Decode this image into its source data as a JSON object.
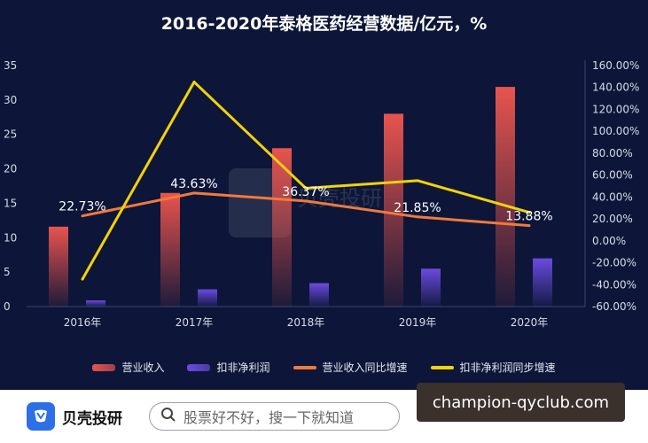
{
  "chart_data": {
    "type": "bar",
    "title": "2016-2020年泰格医药经营数据/亿元，%",
    "categories": [
      "2016年",
      "2017年",
      "2018年",
      "2019年",
      "2020年"
    ],
    "series": [
      {
        "name": "营业收入",
        "type": "bar",
        "axis": "left",
        "values": [
          11.6,
          16.5,
          23.0,
          28.0,
          31.9
        ],
        "color": "#e8544e"
      },
      {
        "name": "扣非净利润",
        "type": "bar",
        "axis": "left",
        "values": [
          0.9,
          2.5,
          3.4,
          5.5,
          7.0
        ],
        "color": "#6a4be0"
      },
      {
        "name": "营业收入同比增速",
        "type": "line",
        "axis": "right",
        "values": [
          22.73,
          43.63,
          36.37,
          21.85,
          13.88
        ],
        "data_labels": [
          "22.73%",
          "43.63%",
          "36.37%",
          "21.85%",
          "13.88%"
        ],
        "color": "#f07a3c"
      },
      {
        "name": "扣非净利润同步增速",
        "type": "line",
        "axis": "right",
        "values": [
          -35,
          145,
          48,
          55,
          26
        ],
        "color": "#f2d20a"
      }
    ],
    "y_left": {
      "range": [
        0,
        35
      ],
      "ticks": [
        "0",
        "5",
        "10",
        "15",
        "20",
        "25",
        "30",
        "35"
      ]
    },
    "y_right": {
      "range": [
        -60,
        160
      ],
      "ticks": [
        "-60.00%",
        "-40.00%",
        "-20.00%",
        "0.00%",
        "20.00%",
        "40.00%",
        "60.00%",
        "80.00%",
        "100.00%",
        "120.00%",
        "140.00%",
        "160.00%"
      ]
    },
    "grid": false,
    "legend_position": "bottom"
  },
  "watermark": {
    "text": "贝壳投研"
  },
  "footer": {
    "brand_name": "贝壳投研",
    "search_placeholder": "股票好不好，搜一下就知道",
    "url_badge": "champion-qyclub.com"
  }
}
